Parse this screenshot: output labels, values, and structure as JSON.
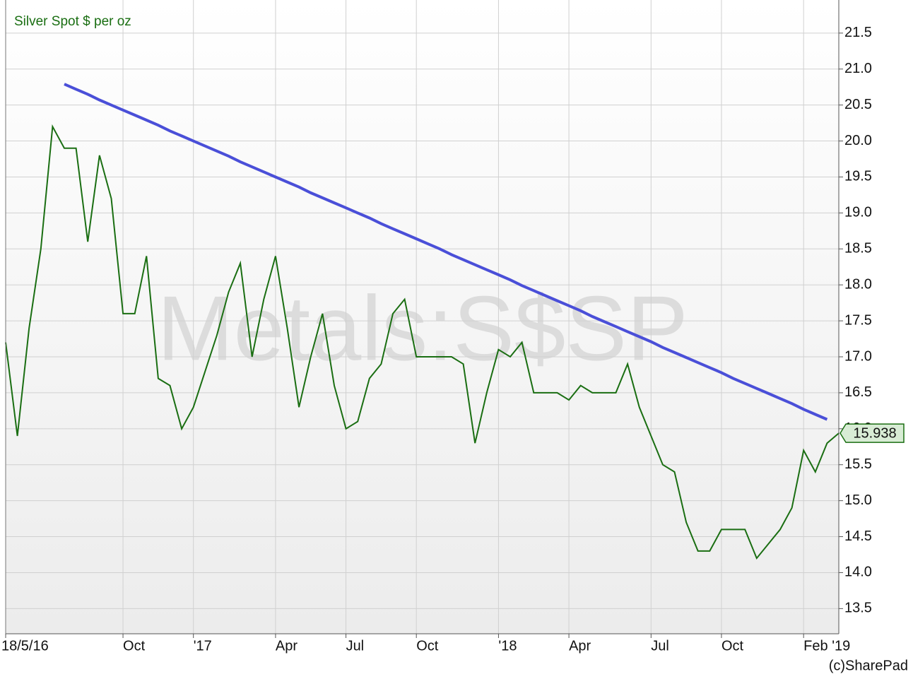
{
  "chart_data": {
    "type": "line",
    "title": "Silver Spot $ per oz",
    "watermark": "Metals:S$SP",
    "credit": "(c)SharePad",
    "categories": [
      "18/5/16",
      null,
      null,
      null,
      null,
      null,
      null,
      null,
      null,
      null,
      "Oct",
      null,
      null,
      null,
      null,
      null,
      "'17",
      null,
      null,
      null,
      null,
      null,
      null,
      "Apr",
      null,
      null,
      null,
      null,
      null,
      "Jul",
      null,
      null,
      null,
      null,
      null,
      "Oct",
      null,
      null,
      null,
      null,
      null,
      null,
      "'18",
      null,
      null,
      null,
      null,
      null,
      "Apr",
      null,
      null,
      null,
      null,
      null,
      null,
      "Jul",
      null,
      null,
      null,
      null,
      null,
      "Oct",
      null,
      null,
      null,
      null,
      null,
      null,
      "Feb '19",
      null,
      null,
      null
    ],
    "series": [
      {
        "color": "#1a6e12",
        "values": [
          17.2,
          15.9,
          17.4,
          18.5,
          20.2,
          19.9,
          19.9,
          18.6,
          19.8,
          19.2,
          17.6,
          17.6,
          18.4,
          16.7,
          16.6,
          16.0,
          16.3,
          16.8,
          17.3,
          17.9,
          18.3,
          17.0,
          17.8,
          18.4,
          17.4,
          16.3,
          17.0,
          17.6,
          16.6,
          16.0,
          16.1,
          16.7,
          16.9,
          17.6,
          17.8,
          17.0,
          17.0,
          17.0,
          17.0,
          16.9,
          15.8,
          16.5,
          17.1,
          17.0,
          17.2,
          16.5,
          16.5,
          16.5,
          16.4,
          16.6,
          16.5,
          16.5,
          16.5,
          16.9,
          16.3,
          15.9,
          15.5,
          15.4,
          14.7,
          14.3,
          14.3,
          14.6,
          14.6,
          14.6,
          14.2,
          14.4,
          14.6,
          14.9,
          15.7,
          15.4,
          15.8,
          15.938
        ]
      },
      {
        "color": "#4a4fd8",
        "values": [
          null,
          null,
          null,
          null,
          null,
          20.79,
          20.72,
          20.65,
          20.57,
          20.5,
          20.43,
          20.36,
          20.29,
          20.22,
          20.14,
          20.07,
          20.0,
          19.93,
          19.86,
          19.79,
          19.71,
          19.64,
          19.57,
          19.5,
          19.43,
          19.36,
          19.28,
          19.21,
          19.14,
          19.07,
          19.0,
          18.93,
          18.85,
          18.78,
          18.71,
          18.64,
          18.57,
          18.5,
          18.42,
          18.35,
          18.28,
          18.21,
          18.14,
          18.07,
          17.99,
          17.92,
          17.85,
          17.78,
          17.71,
          17.64,
          17.56,
          17.49,
          17.42,
          17.35,
          17.28,
          17.21,
          17.13,
          17.06,
          16.99,
          16.92,
          16.85,
          16.78,
          16.7,
          16.63,
          16.56,
          16.49,
          16.42,
          16.35,
          16.27,
          16.2,
          16.13,
          null
        ]
      }
    ],
    "ylim": [
      13.15,
      21.96
    ],
    "yticks": [
      13.5,
      {
        "value": 14,
        "label": "14.0"
      },
      14.5,
      {
        "value": 15,
        "label": "15.0"
      },
      15.5,
      {
        "value": 16,
        "label": "16.0"
      },
      16.5,
      {
        "value": 17,
        "label": "17.0"
      },
      17.5,
      {
        "value": 18,
        "label": "18.0"
      },
      18.5,
      {
        "value": 19,
        "label": "19.0"
      },
      19.5,
      {
        "value": 20,
        "label": "20.0"
      },
      20.5,
      {
        "value": 21,
        "label": "21.0"
      },
      21.5
    ],
    "grid": true
  }
}
